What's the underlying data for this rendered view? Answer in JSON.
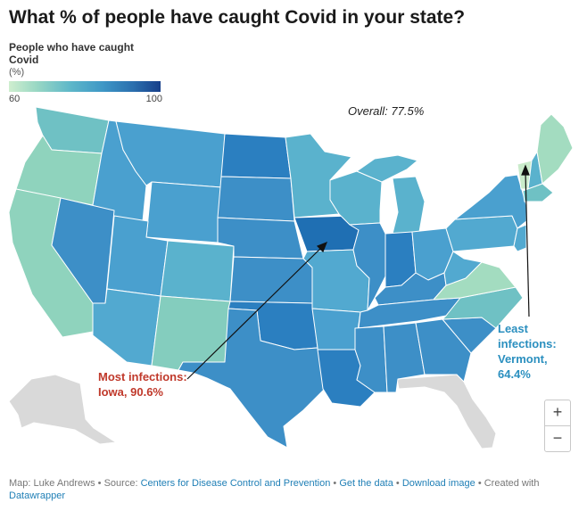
{
  "title": "What % of people have caught Covid in your state?",
  "legend": {
    "title": "People who have caught Covid",
    "unit": "(%)",
    "min_label": "60",
    "max_label": "100",
    "color_min": "#cfeecf",
    "color_max": "#173f8a"
  },
  "overall_label": "Overall: 77.5%",
  "annotations": {
    "most": {
      "line1": "Most infections:",
      "line2": "Iowa, 90.6%",
      "color": "#c0392b"
    },
    "least": {
      "line1": "Least",
      "line2": "infections:",
      "line3": "Vermont,",
      "line4": "64.4%",
      "color": "#2a8fbf"
    }
  },
  "states": {
    "WA": "#6fc1c4",
    "OR": "#8fd3bd",
    "CA": "#8fd3bd",
    "ID": "#4aa0cf",
    "NV": "#3d8fc7",
    "MT": "#4aa0cf",
    "WY": "#4aa0cf",
    "UT": "#4aa0cf",
    "AZ": "#52a9d0",
    "CO": "#5ab2cd",
    "NM": "#84cdbe",
    "ND": "#2b7fc0",
    "SD": "#3d8fc7",
    "NE": "#3d8fc7",
    "KS": "#3d8fc7",
    "OK": "#2b7fc0",
    "TX": "#3d8fc7",
    "MN": "#5ab2cd",
    "IA": "#1f6fb3",
    "MO": "#52a9d0",
    "AR": "#4aa0cf",
    "LA": "#2b7fc0",
    "WI": "#5ab2cd",
    "IL": "#3d8fc7",
    "MI": "#5ab2cd",
    "IN": "#2b7fc0",
    "OH": "#4aa0cf",
    "KY": "#3d8fc7",
    "TN": "#3d8fc7",
    "MS": "#3d8fc7",
    "AL": "#3d8fc7",
    "GA": "#3d8fc7",
    "FL": "#d9d9d9",
    "SC": "#3d8fc7",
    "NC": "#6fc1c4",
    "VA": "#a3dcc0",
    "WV": "#52a9d0",
    "PA": "#52a9d0",
    "NY": "#4aa0cf",
    "ME": "#a3dcc0",
    "VT": "#c9ebca",
    "NH": "#5ab2cd",
    "MA": "#6fc1c4",
    "NJ": "#52a9d0",
    "AK": "#d9d9d9"
  },
  "zoom": {
    "in": "+",
    "out": "−"
  },
  "footer": {
    "map_by": "Map: Luke Andrews",
    "sep": " • ",
    "source_label": "Source: ",
    "source_link": "Centers for Disease Control and Prevention",
    "get_data": "Get the data",
    "download": "Download image",
    "created_with": "Created with",
    "datawrapper": "Datawrapper"
  }
}
